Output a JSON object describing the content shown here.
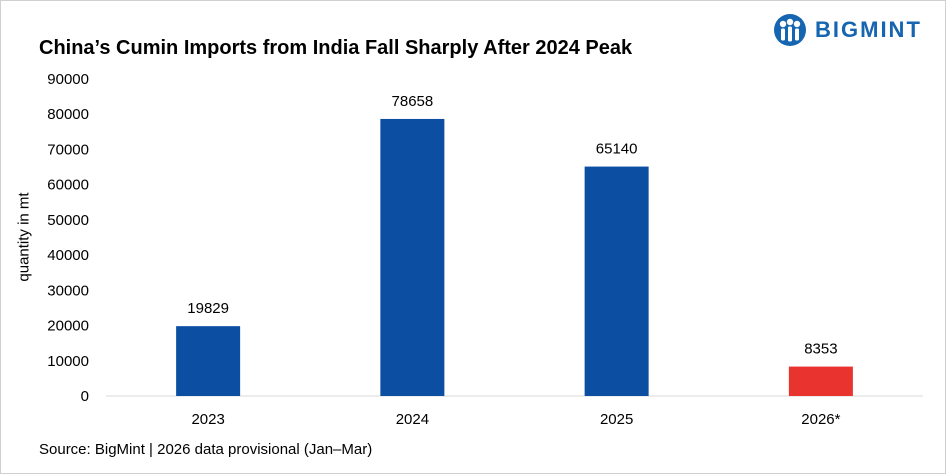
{
  "brand": {
    "name": "BIGMINT",
    "color": "#1565b0",
    "icon": "bigmint-logo-icon"
  },
  "source_note": "Source: BigMint | 2026 data provisional (Jan–Mar)",
  "chart_data": {
    "type": "bar",
    "title": "China’s Cumin Imports from India Fall Sharply After 2024 Peak",
    "xlabel": "",
    "ylabel": "quantity in mt",
    "categories": [
      "2023",
      "2024",
      "2025",
      "2026*"
    ],
    "values": [
      19829,
      78658,
      65140,
      8353
    ],
    "value_labels": [
      "19829",
      "78658",
      "65140",
      "8353"
    ],
    "bar_colors": [
      "#0b4ea2",
      "#0b4ea2",
      "#0b4ea2",
      "#e8332e"
    ],
    "ylim": [
      0,
      90000
    ],
    "yticks": [
      0,
      10000,
      20000,
      30000,
      40000,
      50000,
      60000,
      70000,
      80000,
      90000
    ],
    "ytick_labels": [
      "0",
      "10000",
      "20000",
      "30000",
      "40000",
      "50000",
      "60000",
      "70000",
      "80000",
      "90000"
    ],
    "grid": false,
    "legend": "none"
  }
}
